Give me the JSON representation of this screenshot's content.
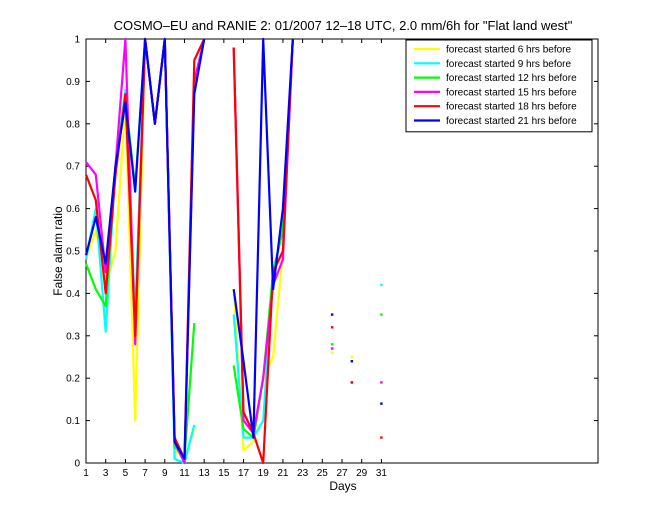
{
  "chart_data": {
    "type": "line",
    "title": "COSMO–EU and RANIE 2: 01/2007 12–18 UTC, 2.0 mm/6h for \"Flat land west\"",
    "xlabel": "Days",
    "ylabel": "False alarm ratio",
    "xlim": [
      1,
      53
    ],
    "ylim": [
      0,
      1
    ],
    "xticks": [
      1,
      3,
      5,
      7,
      9,
      11,
      13,
      15,
      17,
      19,
      21,
      23,
      25,
      27,
      29,
      31
    ],
    "yticks": [
      0,
      0.1,
      0.2,
      0.3,
      0.4,
      0.5,
      0.6,
      0.7,
      0.8,
      0.9,
      1
    ],
    "ytick_labels": [
      "0",
      "0.1",
      "0.2",
      "0.3",
      "0.4",
      "0.5",
      "0.6",
      "0.7",
      "0.8",
      "0.9",
      "1"
    ],
    "grid": false,
    "legend_position": "top-right",
    "series": [
      {
        "name": "forecast started 6 hrs before",
        "color": "#ffff00",
        "points": [
          [
            1,
            0.48
          ],
          [
            2,
            0.55
          ],
          [
            3,
            0.42
          ],
          [
            4,
            0.5
          ],
          [
            5,
            0.85
          ],
          [
            6,
            0.1
          ],
          [
            7,
            1
          ],
          [
            8,
            0.8
          ],
          [
            9,
            1
          ],
          [
            10,
            0.03
          ],
          [
            11,
            0.01
          ],
          [
            12,
            0.08
          ],
          [
            null,
            null
          ],
          [
            16,
            0.41
          ],
          [
            17,
            0.03
          ],
          [
            18,
            0.05
          ],
          [
            19,
            0.2
          ],
          [
            20,
            0.25
          ],
          [
            21,
            0.5
          ],
          [
            22,
            1
          ]
        ],
        "markers": [
          [
            26,
            0.26
          ],
          [
            28,
            0.25
          ],
          [
            31,
            0.19
          ]
        ]
      },
      {
        "name": "forecast started 9 hrs before",
        "color": "#00ffff",
        "points": [
          [
            1,
            0.48
          ],
          [
            2,
            0.6
          ],
          [
            3,
            0.31
          ],
          [
            4,
            0.7
          ],
          [
            5,
            0.88
          ],
          [
            6,
            0.35
          ],
          [
            7,
            1
          ],
          [
            8,
            0.8
          ],
          [
            9,
            1
          ],
          [
            10,
            0.01
          ],
          [
            11,
            0
          ],
          [
            12,
            0.09
          ],
          [
            null,
            null
          ],
          [
            16,
            0.35
          ],
          [
            17,
            0.06
          ],
          [
            18,
            0.06
          ],
          [
            19,
            0.1
          ],
          [
            20,
            0.45
          ],
          [
            21,
            0.55
          ],
          [
            22,
            1
          ]
        ],
        "markers": [
          [
            26,
            0.27
          ],
          [
            28,
            0.24
          ],
          [
            31,
            0.42
          ]
        ]
      },
      {
        "name": "forecast started 12 hrs before",
        "color": "#00ff00",
        "points": [
          [
            1,
            0.47
          ],
          [
            2,
            0.41
          ],
          [
            3,
            0.37
          ],
          [
            4,
            0.7
          ],
          [
            5,
            0.86
          ],
          [
            6,
            0.65
          ],
          [
            7,
            1
          ],
          [
            8,
            0.8
          ],
          [
            9,
            1
          ],
          [
            10,
            0.04
          ],
          [
            11,
            0.01
          ],
          [
            12,
            0.33
          ],
          [
            null,
            null
          ],
          [
            16,
            0.23
          ],
          [
            17,
            0.08
          ],
          [
            18,
            0.06
          ],
          [
            19,
            0.2
          ],
          [
            20,
            0.45
          ],
          [
            21,
            0.55
          ],
          [
            22,
            1
          ]
        ],
        "markers": [
          [
            26,
            0.28
          ],
          [
            28,
            0.24
          ],
          [
            31,
            0.35
          ]
        ]
      },
      {
        "name": "forecast started 15 hrs before",
        "color": "#ff00ff",
        "points": [
          [
            1,
            0.71
          ],
          [
            2,
            0.68
          ],
          [
            3,
            0.45
          ],
          [
            4,
            0.7
          ],
          [
            5,
            1
          ],
          [
            6,
            0.28
          ],
          [
            7,
            1
          ],
          [
            8,
            0.8
          ],
          [
            9,
            1
          ],
          [
            10,
            0.05
          ],
          [
            11,
            0
          ],
          [
            12,
            0.9
          ],
          [
            13,
            1
          ],
          [
            null,
            null
          ],
          [
            16,
            0.98
          ],
          [
            17,
            0.1
          ],
          [
            18,
            0.07
          ],
          [
            19,
            0.2
          ],
          [
            20,
            0.42
          ],
          [
            21,
            0.48
          ],
          [
            22,
            1
          ]
        ],
        "markers": [
          [
            26,
            0.27
          ],
          [
            28,
            0.19
          ],
          [
            31,
            0.19
          ]
        ]
      },
      {
        "name": "forecast started 18 hrs before",
        "color": "#ff0000",
        "points": [
          [
            1,
            0.68
          ],
          [
            2,
            0.62
          ],
          [
            3,
            0.4
          ],
          [
            4,
            0.68
          ],
          [
            5,
            0.87
          ],
          [
            6,
            0.3
          ],
          [
            7,
            1
          ],
          [
            8,
            0.8
          ],
          [
            9,
            1
          ],
          [
            10,
            0.06
          ],
          [
            11,
            0.01
          ],
          [
            12,
            0.95
          ],
          [
            13,
            1
          ],
          [
            null,
            null
          ],
          [
            16,
            0.98
          ],
          [
            17,
            0.12
          ],
          [
            18,
            0.07
          ],
          [
            19,
            0
          ],
          [
            20,
            0.45
          ],
          [
            21,
            0.5
          ],
          [
            22,
            1
          ]
        ],
        "markers": [
          [
            26,
            0.32
          ],
          [
            28,
            0.19
          ],
          [
            31,
            0.06
          ]
        ]
      },
      {
        "name": "forecast started 21 hrs before",
        "color": "#0000ff",
        "points": [
          [
            1,
            0.49
          ],
          [
            2,
            0.58
          ],
          [
            3,
            0.47
          ],
          [
            4,
            0.7
          ],
          [
            5,
            0.85
          ],
          [
            6,
            0.64
          ],
          [
            7,
            1
          ],
          [
            8,
            0.8
          ],
          [
            9,
            1
          ],
          [
            10,
            0.05
          ],
          [
            11,
            0.01
          ],
          [
            12,
            0.87
          ],
          [
            13,
            1
          ],
          [
            null,
            null
          ],
          [
            16,
            0.41
          ],
          [
            17,
            0.24
          ],
          [
            18,
            0.06
          ],
          [
            19,
            1
          ],
          [
            20,
            0.41
          ],
          [
            21,
            0.6
          ],
          [
            22,
            1
          ]
        ],
        "markers": [
          [
            26,
            0.35
          ],
          [
            28,
            0.24
          ],
          [
            31,
            0.14
          ]
        ]
      }
    ]
  }
}
